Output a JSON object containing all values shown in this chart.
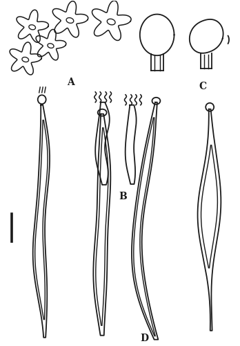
{
  "background": "#ffffff",
  "line_color": "#1a1a1a",
  "line_width": 1.3,
  "label_A": "A",
  "label_B": "B",
  "label_C": "C",
  "label_D": "D",
  "label_fontsize": 10,
  "fig_width": 3.48,
  "fig_height": 5.0,
  "dpi": 100
}
